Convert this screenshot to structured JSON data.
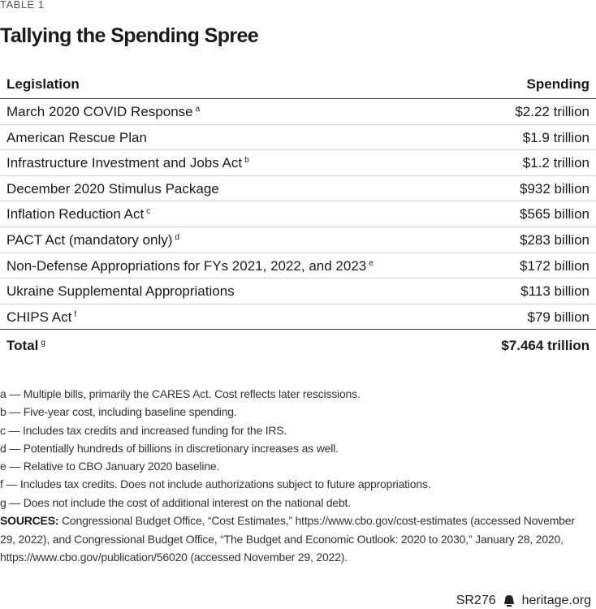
{
  "header": {
    "label": "TABLE 1",
    "title": "Tallying the Spending Spree"
  },
  "table": {
    "columns": [
      "Legislation",
      "Spending"
    ],
    "rows": [
      {
        "legislation": "March 2020 COVID Response",
        "note": "a",
        "spending": "$2.22 trillion"
      },
      {
        "legislation": "American Rescue Plan",
        "spending": "$1.9 trillion"
      },
      {
        "legislation": "Infrastructure Investment and Jobs Act",
        "note": "b",
        "spending": "$1.2 trillion"
      },
      {
        "legislation": "December 2020 Stimulus Package",
        "spending": "$932 billion"
      },
      {
        "legislation": "Inflation Reduction Act",
        "note": "c",
        "spending": "$565 billion"
      },
      {
        "legislation": "PACT Act (mandatory only)",
        "note": "d",
        "spending": "$283 billion"
      },
      {
        "legislation": "Non-Defense Appropriations for FYs 2021, 2022, and 2023",
        "note": "e",
        "spending": "$172 billion"
      },
      {
        "legislation": "Ukraine Supplemental Appropriations",
        "spending": "$113 billion"
      },
      {
        "legislation": "CHIPS Act",
        "note": "f",
        "spending": "$79 billion"
      }
    ],
    "total": {
      "legislation": "Total",
      "note": "g",
      "spending": "$7.464 trillion"
    }
  },
  "notes": [
    "a — Multiple bills, primarily the CARES Act. Cost reflects later rescissions.",
    "b — Five-year cost, including baseline spending.",
    "c — Includes tax credits and increased funding for the IRS.",
    "d — Potentially hundreds of billions in discretionary increases as well.",
    "e — Relative to CBO January 2020 baseline.",
    "f — Includes tax credits. Does not include authorizations subject to future appropriations.",
    "g — Does not include the cost of additional interest on the national debt."
  ],
  "sources": {
    "label": "SOURCES:",
    "text": "Congressional Budget Office, “Cost Estimates,” https://www.cbo.gov/cost-estimates (accessed November 29, 2022), and Congressional Budget Office, “The Budget and Economic Outlook: 2020 to 2030,” January 28, 2020, https://www.cbo.gov/publication/56020 (accessed November 29, 2022)."
  },
  "footer": {
    "code": "SR276",
    "site": "heritage.org"
  }
}
